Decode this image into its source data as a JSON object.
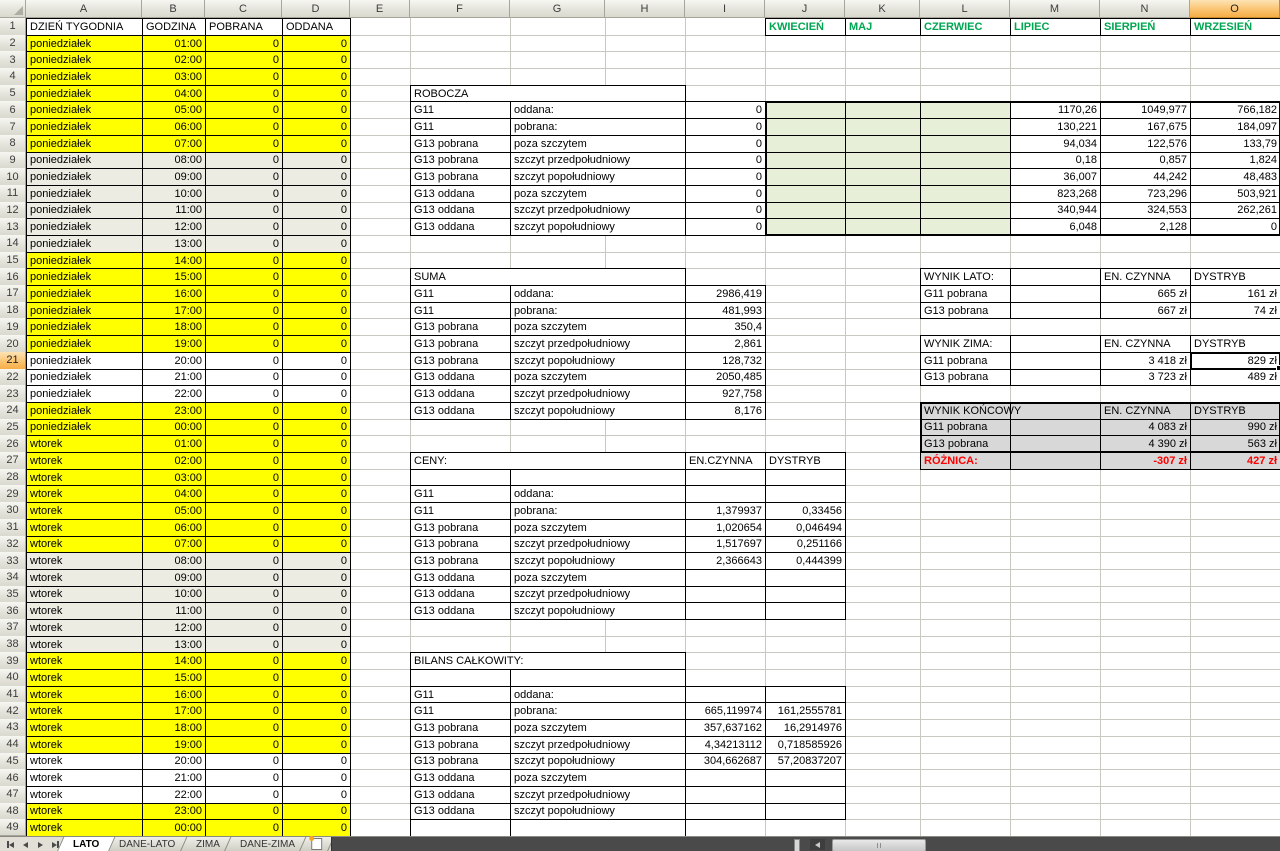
{
  "sheet": {
    "columns": [
      "A",
      "B",
      "C",
      "D",
      "E",
      "F",
      "G",
      "H",
      "I",
      "J",
      "K",
      "L",
      "M",
      "N",
      "O"
    ],
    "row_count": 49,
    "selection": {
      "column": "O",
      "row": 21,
      "value": "829 zł"
    },
    "header_row": {
      "day": "DZIEŃ TYGODNIA",
      "hour": "GODZINA",
      "pobrana": "POBRANA",
      "oddana": "ODDANA"
    },
    "month_headers": [
      "KWIECIEŃ",
      "MAJ",
      "CZERWIEC",
      "LIPIEC",
      "SIERPIEŃ",
      "WRZESIEŃ"
    ],
    "hourly": [
      {
        "row": 2,
        "day": "poniedziałek",
        "time": "01:00",
        "pobrana": "0",
        "oddana": "0",
        "fill": "yellow"
      },
      {
        "row": 3,
        "day": "poniedziałek",
        "time": "02:00",
        "pobrana": "0",
        "oddana": "0",
        "fill": "yellow"
      },
      {
        "row": 4,
        "day": "poniedziałek",
        "time": "03:00",
        "pobrana": "0",
        "oddana": "0",
        "fill": "yellow"
      },
      {
        "row": 5,
        "day": "poniedziałek",
        "time": "04:00",
        "pobrana": "0",
        "oddana": "0",
        "fill": "yellow"
      },
      {
        "row": 6,
        "day": "poniedziałek",
        "time": "05:00",
        "pobrana": "0",
        "oddana": "0",
        "fill": "yellow"
      },
      {
        "row": 7,
        "day": "poniedziałek",
        "time": "06:00",
        "pobrana": "0",
        "oddana": "0",
        "fill": "yellow"
      },
      {
        "row": 8,
        "day": "poniedziałek",
        "time": "07:00",
        "pobrana": "0",
        "oddana": "0",
        "fill": "yellow"
      },
      {
        "row": 9,
        "day": "poniedziałek",
        "time": "08:00",
        "pobrana": "0",
        "oddana": "0",
        "fill": "gray"
      },
      {
        "row": 10,
        "day": "poniedziałek",
        "time": "09:00",
        "pobrana": "0",
        "oddana": "0",
        "fill": "gray"
      },
      {
        "row": 11,
        "day": "poniedziałek",
        "time": "10:00",
        "pobrana": "0",
        "oddana": "0",
        "fill": "gray"
      },
      {
        "row": 12,
        "day": "poniedziałek",
        "time": "11:00",
        "pobrana": "0",
        "oddana": "0",
        "fill": "gray"
      },
      {
        "row": 13,
        "day": "poniedziałek",
        "time": "12:00",
        "pobrana": "0",
        "oddana": "0",
        "fill": "gray"
      },
      {
        "row": 14,
        "day": "poniedziałek",
        "time": "13:00",
        "pobrana": "0",
        "oddana": "0",
        "fill": "gray"
      },
      {
        "row": 15,
        "day": "poniedziałek",
        "time": "14:00",
        "pobrana": "0",
        "oddana": "0",
        "fill": "yellow"
      },
      {
        "row": 16,
        "day": "poniedziałek",
        "time": "15:00",
        "pobrana": "0",
        "oddana": "0",
        "fill": "yellow"
      },
      {
        "row": 17,
        "day": "poniedziałek",
        "time": "16:00",
        "pobrana": "0",
        "oddana": "0",
        "fill": "yellow"
      },
      {
        "row": 18,
        "day": "poniedziałek",
        "time": "17:00",
        "pobrana": "0",
        "oddana": "0",
        "fill": "yellow"
      },
      {
        "row": 19,
        "day": "poniedziałek",
        "time": "18:00",
        "pobrana": "0",
        "oddana": "0",
        "fill": "yellow"
      },
      {
        "row": 20,
        "day": "poniedziałek",
        "time": "19:00",
        "pobrana": "0",
        "oddana": "0",
        "fill": "yellow"
      },
      {
        "row": 21,
        "day": "poniedziałek",
        "time": "20:00",
        "pobrana": "0",
        "oddana": "0",
        "fill": "none"
      },
      {
        "row": 22,
        "day": "poniedziałek",
        "time": "21:00",
        "pobrana": "0",
        "oddana": "0",
        "fill": "none"
      },
      {
        "row": 23,
        "day": "poniedziałek",
        "time": "22:00",
        "pobrana": "0",
        "oddana": "0",
        "fill": "none"
      },
      {
        "row": 24,
        "day": "poniedziałek",
        "time": "23:00",
        "pobrana": "0",
        "oddana": "0",
        "fill": "yellow"
      },
      {
        "row": 25,
        "day": "poniedziałek",
        "time": "00:00",
        "pobrana": "0",
        "oddana": "0",
        "fill": "yellow"
      },
      {
        "row": 26,
        "day": "wtorek",
        "time": "01:00",
        "pobrana": "0",
        "oddana": "0",
        "fill": "yellow"
      },
      {
        "row": 27,
        "day": "wtorek",
        "time": "02:00",
        "pobrana": "0",
        "oddana": "0",
        "fill": "yellow"
      },
      {
        "row": 28,
        "day": "wtorek",
        "time": "03:00",
        "pobrana": "0",
        "oddana": "0",
        "fill": "yellow"
      },
      {
        "row": 29,
        "day": "wtorek",
        "time": "04:00",
        "pobrana": "0",
        "oddana": "0",
        "fill": "yellow"
      },
      {
        "row": 30,
        "day": "wtorek",
        "time": "05:00",
        "pobrana": "0",
        "oddana": "0",
        "fill": "yellow"
      },
      {
        "row": 31,
        "day": "wtorek",
        "time": "06:00",
        "pobrana": "0",
        "oddana": "0",
        "fill": "yellow"
      },
      {
        "row": 32,
        "day": "wtorek",
        "time": "07:00",
        "pobrana": "0",
        "oddana": "0",
        "fill": "yellow"
      },
      {
        "row": 33,
        "day": "wtorek",
        "time": "08:00",
        "pobrana": "0",
        "oddana": "0",
        "fill": "gray"
      },
      {
        "row": 34,
        "day": "wtorek",
        "time": "09:00",
        "pobrana": "0",
        "oddana": "0",
        "fill": "gray"
      },
      {
        "row": 35,
        "day": "wtorek",
        "time": "10:00",
        "pobrana": "0",
        "oddana": "0",
        "fill": "gray"
      },
      {
        "row": 36,
        "day": "wtorek",
        "time": "11:00",
        "pobrana": "0",
        "oddana": "0",
        "fill": "gray"
      },
      {
        "row": 37,
        "day": "wtorek",
        "time": "12:00",
        "pobrana": "0",
        "oddana": "0",
        "fill": "gray"
      },
      {
        "row": 38,
        "day": "wtorek",
        "time": "13:00",
        "pobrana": "0",
        "oddana": "0",
        "fill": "gray"
      },
      {
        "row": 39,
        "day": "wtorek",
        "time": "14:00",
        "pobrana": "0",
        "oddana": "0",
        "fill": "yellow"
      },
      {
        "row": 40,
        "day": "wtorek",
        "time": "15:00",
        "pobrana": "0",
        "oddana": "0",
        "fill": "yellow"
      },
      {
        "row": 41,
        "day": "wtorek",
        "time": "16:00",
        "pobrana": "0",
        "oddana": "0",
        "fill": "yellow"
      },
      {
        "row": 42,
        "day": "wtorek",
        "time": "17:00",
        "pobrana": "0",
        "oddana": "0",
        "fill": "yellow"
      },
      {
        "row": 43,
        "day": "wtorek",
        "time": "18:00",
        "pobrana": "0",
        "oddana": "0",
        "fill": "yellow"
      },
      {
        "row": 44,
        "day": "wtorek",
        "time": "19:00",
        "pobrana": "0",
        "oddana": "0",
        "fill": "yellow"
      },
      {
        "row": 45,
        "day": "wtorek",
        "time": "20:00",
        "pobrana": "0",
        "oddana": "0",
        "fill": "none"
      },
      {
        "row": 46,
        "day": "wtorek",
        "time": "21:00",
        "pobrana": "0",
        "oddana": "0",
        "fill": "none"
      },
      {
        "row": 47,
        "day": "wtorek",
        "time": "22:00",
        "pobrana": "0",
        "oddana": "0",
        "fill": "none"
      },
      {
        "row": 48,
        "day": "wtorek",
        "time": "23:00",
        "pobrana": "0",
        "oddana": "0",
        "fill": "yellow"
      },
      {
        "row": 49,
        "day": "wtorek",
        "time": "00:00",
        "pobrana": "0",
        "oddana": "0",
        "fill": "yellow"
      }
    ],
    "robocza": {
      "title": "ROBOCZA",
      "title_row": 5,
      "rows": [
        {
          "row": 6,
          "tariff": "G11",
          "period": "oddana:",
          "value": "0"
        },
        {
          "row": 7,
          "tariff": "G11",
          "period": "pobrana:",
          "value": "0"
        },
        {
          "row": 8,
          "tariff": "G13 pobrana",
          "period": "poza szczytem",
          "value": "0"
        },
        {
          "row": 9,
          "tariff": "G13 pobrana",
          "period": "szczyt przedpołudniowy",
          "value": "0"
        },
        {
          "row": 10,
          "tariff": "G13 pobrana",
          "period": "szczyt popołudniowy",
          "value": "0"
        },
        {
          "row": 11,
          "tariff": "G13 oddana",
          "period": "poza szczytem",
          "value": "0"
        },
        {
          "row": 12,
          "tariff": "G13 oddana",
          "period": "szczyt przedpołudniowy",
          "value": "0"
        },
        {
          "row": 13,
          "tariff": "G13 oddana",
          "period": "szczyt popołudniowy",
          "value": "0"
        }
      ]
    },
    "monthly_values": [
      {
        "row": 6,
        "lipiec": "1170,26",
        "sierpien": "1049,977",
        "wrzesien": "766,182"
      },
      {
        "row": 7,
        "lipiec": "130,221",
        "sierpien": "167,675",
        "wrzesien": "184,097"
      },
      {
        "row": 8,
        "lipiec": "94,034",
        "sierpien": "122,576",
        "wrzesien": "133,79"
      },
      {
        "row": 9,
        "lipiec": "0,18",
        "sierpien": "0,857",
        "wrzesien": "1,824"
      },
      {
        "row": 10,
        "lipiec": "36,007",
        "sierpien": "44,242",
        "wrzesien": "48,483"
      },
      {
        "row": 11,
        "lipiec": "823,268",
        "sierpien": "723,296",
        "wrzesien": "503,921"
      },
      {
        "row": 12,
        "lipiec": "340,944",
        "sierpien": "324,553",
        "wrzesien": "262,261"
      },
      {
        "row": 13,
        "lipiec": "6,048",
        "sierpien": "2,128",
        "wrzesien": "0"
      }
    ],
    "suma": {
      "title": "SUMA",
      "title_row": 16,
      "rows": [
        {
          "row": 17,
          "tariff": "G11",
          "period": "oddana:",
          "value": "2986,419"
        },
        {
          "row": 18,
          "tariff": "G11",
          "period": "pobrana:",
          "value": "481,993"
        },
        {
          "row": 19,
          "tariff": "G13 pobrana",
          "period": "poza szczytem",
          "value": "350,4"
        },
        {
          "row": 20,
          "tariff": "G13 pobrana",
          "period": "szczyt przedpołudniowy",
          "value": "2,861"
        },
        {
          "row": 21,
          "tariff": "G13 pobrana",
          "period": "szczyt popołudniowy",
          "value": "128,732"
        },
        {
          "row": 22,
          "tariff": "G13 oddana",
          "period": "poza szczytem",
          "value": "2050,485"
        },
        {
          "row": 23,
          "tariff": "G13 oddana",
          "period": "szczyt przedpołudniowy",
          "value": "927,758"
        },
        {
          "row": 24,
          "tariff": "G13 oddana",
          "period": "szczyt popołudniowy",
          "value": "8,176"
        }
      ]
    },
    "ceny": {
      "title": "CENY:",
      "title_row": 27,
      "en_header": "EN.CZYNNA",
      "dys_header": "DYSTRYB",
      "rows": [
        {
          "row": 29,
          "tariff": "G11",
          "period": "oddana:",
          "en": "",
          "dys": ""
        },
        {
          "row": 30,
          "tariff": "G11",
          "period": "pobrana:",
          "en": "1,379937",
          "dys": "0,33456"
        },
        {
          "row": 31,
          "tariff": "G13 pobrana",
          "period": "poza szczytem",
          "en": "1,020654",
          "dys": "0,046494"
        },
        {
          "row": 32,
          "tariff": "G13 pobrana",
          "period": "szczyt przedpołudniowy",
          "en": "1,517697",
          "dys": "0,251166"
        },
        {
          "row": 33,
          "tariff": "G13 pobrana",
          "period": "szczyt popołudniowy",
          "en": "2,366643",
          "dys": "0,444399"
        },
        {
          "row": 34,
          "tariff": "G13 oddana",
          "period": "poza szczytem",
          "en": "",
          "dys": ""
        },
        {
          "row": 35,
          "tariff": "G13 oddana",
          "period": "szczyt przedpołudniowy",
          "en": "",
          "dys": ""
        },
        {
          "row": 36,
          "tariff": "G13 oddana",
          "period": "szczyt popołudniowy",
          "en": "",
          "dys": ""
        }
      ]
    },
    "bilans": {
      "title": "BILANS CAŁKOWITY:",
      "title_row": 39,
      "rows": [
        {
          "row": 41,
          "tariff": "G11",
          "period": "oddana:",
          "en": "",
          "dys": ""
        },
        {
          "row": 42,
          "tariff": "G11",
          "period": "pobrana:",
          "en": "665,119974",
          "dys": "161,2555781"
        },
        {
          "row": 43,
          "tariff": "G13 pobrana",
          "period": "poza szczytem",
          "en": "357,637162",
          "dys": "16,2914976"
        },
        {
          "row": 44,
          "tariff": "G13 pobrana",
          "period": "szczyt przedpołudniowy",
          "en": "4,34213112",
          "dys": "0,718585926"
        },
        {
          "row": 45,
          "tariff": "G13 pobrana",
          "period": "szczyt popołudniowy",
          "en": "304,662687",
          "dys": "57,20837207"
        },
        {
          "row": 46,
          "tariff": "G13 oddana",
          "period": "poza szczytem",
          "en": "",
          "dys": ""
        },
        {
          "row": 47,
          "tariff": "G13 oddana",
          "period": "szczyt przedpołudniowy",
          "en": "",
          "dys": ""
        },
        {
          "row": 48,
          "tariff": "G13 oddana",
          "period": "szczyt popołudniowy",
          "en": "",
          "dys": ""
        }
      ]
    },
    "wynik_lato": {
      "title": "WYNIK LATO:",
      "title_row": 16,
      "en_header": "EN. CZYNNA",
      "dys_header": "DYSTRYB",
      "rows": [
        {
          "row": 17,
          "label": "G11 pobrana",
          "en": "665 zł",
          "dys": "161 zł"
        },
        {
          "row": 18,
          "label": "G13 pobrana",
          "en": "667 zł",
          "dys": "74 zł"
        }
      ]
    },
    "wynik_zima": {
      "title": "WYNIK ZIMA:",
      "title_row": 20,
      "en_header": "EN. CZYNNA",
      "dys_header": "DYSTRYB",
      "rows": [
        {
          "row": 21,
          "label": "G11 pobrana",
          "en": "3 418 zł",
          "dys": "829 zł"
        },
        {
          "row": 22,
          "label": "G13 pobrana",
          "en": "3 723 zł",
          "dys": "489 zł"
        }
      ]
    },
    "wynik_koncowy": {
      "title": "WYNIK KOŃCOWY",
      "title_row": 24,
      "en_header": "EN. CZYNNA",
      "dys_header": "DYSTRYB",
      "rows": [
        {
          "row": 25,
          "label": "G11 pobrana",
          "en": "4 083 zł",
          "dys": "990 zł"
        },
        {
          "row": 26,
          "label": "G13 pobrana",
          "en": "4 390 zł",
          "dys": "563 zł"
        }
      ]
    },
    "roznica": {
      "row": 27,
      "label": "RÓŻNICA:",
      "en": "-307 zł",
      "dys": "427 zł"
    }
  },
  "tab_bar": {
    "tabs": [
      {
        "label": "LATO",
        "active": true
      },
      {
        "label": "DANE-LATO",
        "active": false
      },
      {
        "label": "ZIMA",
        "active": false
      },
      {
        "label": "DANE-ZIMA",
        "active": false
      }
    ]
  },
  "colors": {
    "yellow_fill": "#FFFF00",
    "gray_fill": "#EDECE2",
    "green_fill": "#E7EFD9",
    "block_gray": "#D8D8D8",
    "month_text": "#00A651",
    "alert_text": "#FF0000",
    "selected_header": "#F6AE47",
    "gridline": "#C9C9C1"
  }
}
